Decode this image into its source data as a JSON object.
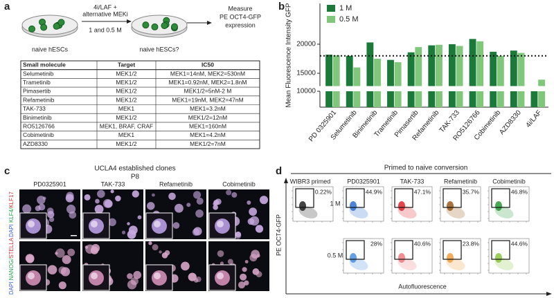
{
  "panel_labels": [
    "a",
    "b",
    "c",
    "d"
  ],
  "schematic": {
    "treatment": [
      "4i/LAF +",
      "alternative MEKi"
    ],
    "dose": "1 and 0.5  M",
    "start": "naive hESCs",
    "end": "naive hESCs?",
    "readout": [
      "Measure",
      "PE OCT4-GFP",
      "expression"
    ]
  },
  "table": {
    "header": [
      "Small molecule",
      "Target",
      "IC50"
    ],
    "rows": [
      [
        "Selumetinib",
        "MEK1/2",
        "MEK1=14nM, MEK2=530nM"
      ],
      [
        "Trametinib",
        "MEK1/2",
        "MEK1=0.92nM, MEK2=1.8nM"
      ],
      [
        "Pimasertib",
        "MEK1/2",
        "MEK1/2=5nM-2  M"
      ],
      [
        "Refametinib",
        "MEK1/2",
        "MEK1=19nM, MEK2=47nM"
      ],
      [
        "TAK-733",
        "MEK1",
        "MEK1=3.2nM"
      ],
      [
        "Binimetinib",
        "MEK1/2",
        "MEK1/2=12nM"
      ],
      [
        "RO5126766",
        "MEK1, BRAF, CRAF",
        "MEK1=160nM"
      ],
      [
        "Cobimetinib",
        "MEK1",
        "MEK1=4.2nM"
      ],
      [
        "AZD8330",
        "MEK1/2",
        "MEK1/2=7nM"
      ]
    ]
  },
  "chart_data": {
    "type": "bar",
    "ylabel": "Mean Fluorescence Intensity GFP",
    "categories": [
      "PD 0325901",
      "Selumetinib",
      "Binimetinib",
      "Trametinib",
      "Pimasertib",
      "Refametinib",
      "TAK-733",
      "RO5126766",
      "Cobimetinib",
      "AZD8330",
      "4i/LAF"
    ],
    "series": [
      {
        "name": "1 M",
        "color": "#1b7a3a",
        "values": [
          18200,
          18000,
          20300,
          17300,
          18600,
          19800,
          20000,
          20900,
          18700,
          18900,
          12700
        ]
      },
      {
        "name": "0.5 M",
        "color": "#80c77c",
        "values": [
          18100,
          16000,
          17500,
          16900,
          19500,
          19900,
          19700,
          20500,
          18000,
          18500,
          13900
        ]
      }
    ],
    "ylim": [
      12800,
      27000
    ],
    "yticks": [
      15000,
      20000
    ],
    "ylim_lower": [
      0,
      10000
    ],
    "yticks_lower": [
      10000
    ],
    "reference_line": 18000,
    "legend": "upper left"
  },
  "images": {
    "title": "UCLA4 established clones",
    "passage": "P8",
    "columns": [
      "PD0325901",
      "TAK-733",
      "Refametinib",
      "Cobimetinib"
    ],
    "rows": [
      [
        "DAPI",
        "KLF4/",
        "KLF17"
      ],
      [
        "DAPI",
        "NANOG/",
        "STELLA"
      ]
    ]
  },
  "flow": {
    "title": "Primed to naive conversion",
    "control": {
      "label": "WIBR3 primed",
      "percent": "0.22%"
    },
    "columns": [
      "PD0325901",
      "TAK-733",
      "Refametinib",
      "Cobimetinib"
    ],
    "rows": [
      "1 M",
      "0.5 M"
    ],
    "percents": [
      [
        "44.9%",
        "47.1%",
        "35.7%",
        "46.8%"
      ],
      [
        "28%",
        "40.6%",
        "23.8%",
        "44.6%"
      ]
    ],
    "ylabel": "PE OCT4-GFP",
    "xlabel": "Autofluorescence"
  }
}
